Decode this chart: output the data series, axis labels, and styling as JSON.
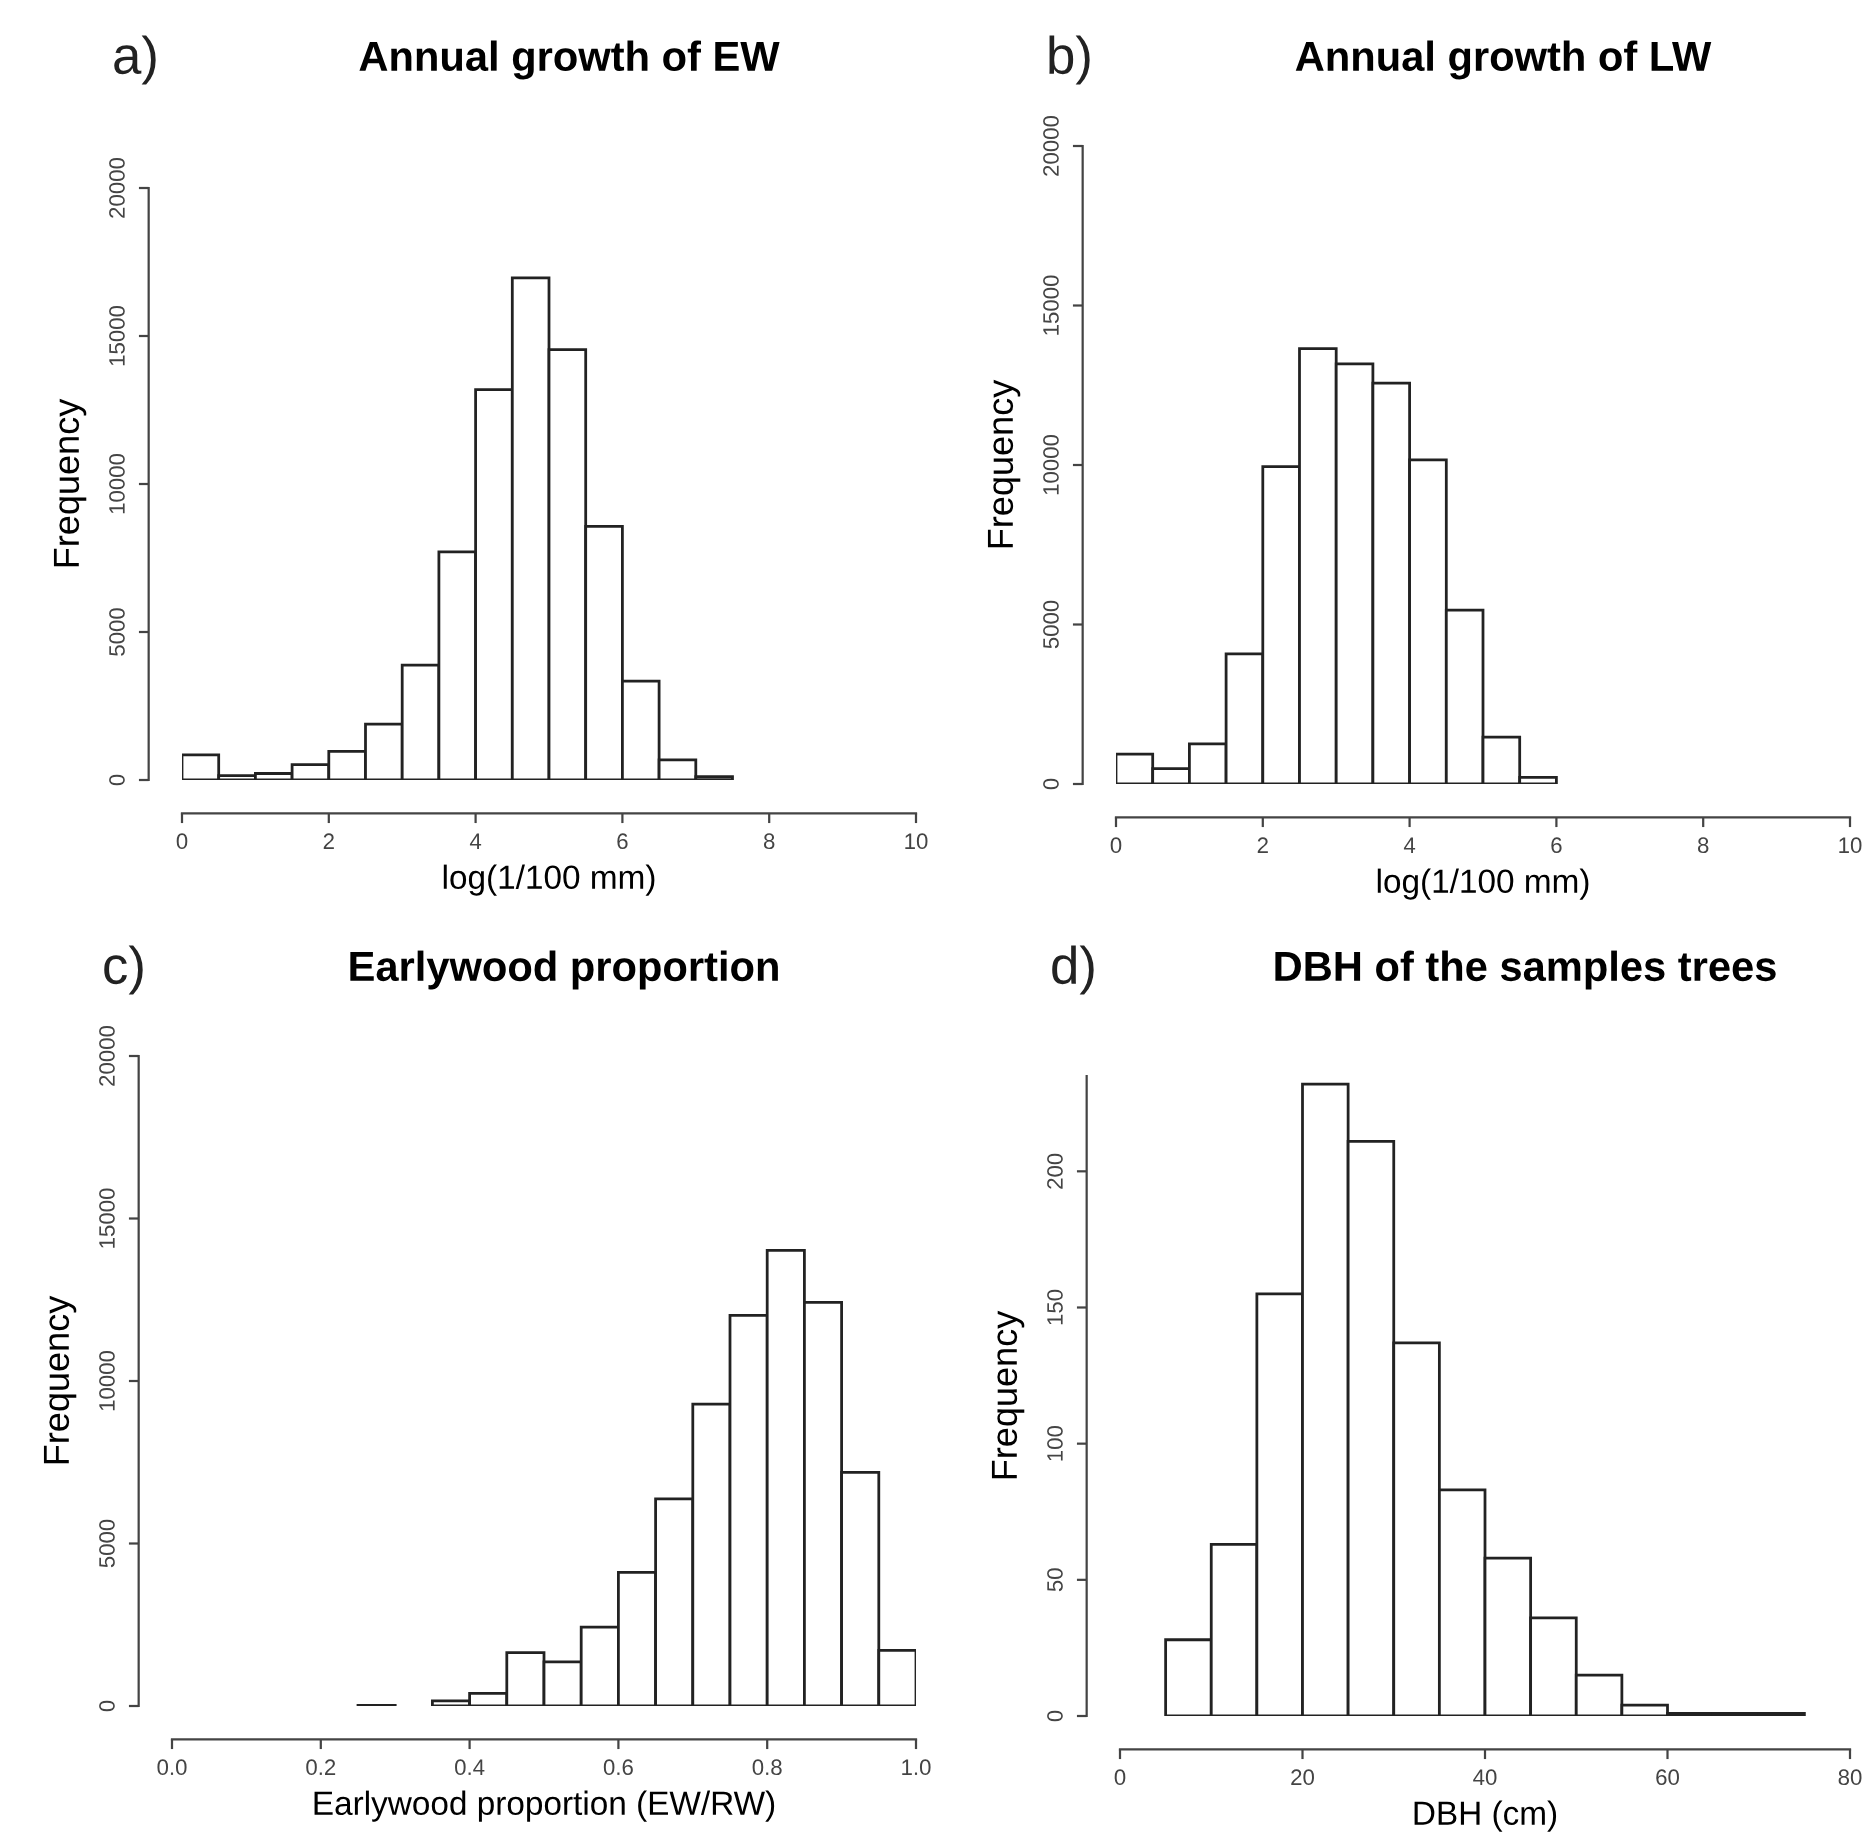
{
  "chart_data": [
    {
      "type": "histogram",
      "title": "Annual growth of EW",
      "annotations": [
        "a)"
      ],
      "xlabel": "log(1/100 mm)",
      "ylabel": "Frequency",
      "color": "#ffffff",
      "bins": [
        0,
        0.5,
        1,
        1.5,
        2,
        2.5,
        3,
        3.5,
        4,
        4.5,
        5,
        5.5,
        6,
        6.5,
        7,
        7.5,
        8,
        8.5
      ],
      "values": [
        850,
        150,
        220,
        520,
        970,
        1890,
        3880,
        7710,
        13190,
        16960,
        14540,
        8570,
        3340,
        680,
        110,
        null,
        null
      ],
      "xlim": [
        0,
        10
      ],
      "xticks": [
        0,
        2,
        4,
        6,
        8,
        10
      ],
      "ylim": [
        0,
        20000
      ],
      "yticks": [
        0,
        5000,
        10000,
        15000,
        20000
      ],
      "grid": false
    },
    {
      "type": "histogram",
      "title": "Annual growth of LW",
      "annotations": [
        "b)"
      ],
      "xlabel": "log(1/100 mm)",
      "ylabel": "Frequency",
      "color": "#ffffff",
      "bins": [
        0,
        0.5,
        1,
        1.5,
        2,
        2.5,
        3,
        3.5,
        4,
        4.5,
        5,
        5.5,
        6,
        6.5
      ],
      "values": [
        940,
        480,
        1260,
        4080,
        9950,
        13650,
        13170,
        12570,
        10160,
        5450,
        1470,
        210,
        null
      ],
      "xlim": [
        0,
        10
      ],
      "xticks": [
        0,
        2,
        4,
        6,
        8,
        10
      ],
      "ylim": [
        0,
        20000
      ],
      "yticks": [
        0,
        5000,
        10000,
        15000,
        20000
      ],
      "grid": false
    },
    {
      "type": "histogram",
      "title": "Earlywood proportion",
      "annotations": [
        "c)"
      ],
      "xlabel": "Earlywood proportion (EW/RW)",
      "ylabel": "Frequency",
      "color": "#ffffff",
      "bins": [
        0,
        0.05,
        0.1,
        0.15,
        0.2,
        0.25,
        0.3,
        0.35,
        0.4,
        0.45,
        0.5,
        0.55,
        0.6,
        0.65,
        0.7,
        0.75,
        0.8,
        0.85,
        0.9,
        0.95,
        1.0
      ],
      "values": [
        0,
        0,
        0,
        0,
        0,
        20,
        null,
        160,
        390,
        1640,
        1360,
        2430,
        4110,
        6370,
        9290,
        12020,
        14020,
        12420,
        7190,
        1710
      ],
      "xlim": [
        0,
        1
      ],
      "xticks": [
        {
          "value": 0,
          "label": "0.0"
        },
        0.2,
        0.4,
        0.6,
        0.8,
        {
          "value": 1,
          "label": "1.0"
        }
      ],
      "ylim": [
        0,
        20000
      ],
      "yticks": [
        0,
        5000,
        10000,
        15000,
        20000
      ],
      "grid": false
    },
    {
      "type": "histogram",
      "title": "DBH of the samples trees",
      "annotations": [
        "d)"
      ],
      "xlabel": "DBH (cm)",
      "ylabel": "Frequency",
      "color": "#ffffff",
      "bins": [
        5,
        10,
        15,
        20,
        25,
        30,
        35,
        40,
        45,
        50,
        55,
        60,
        65,
        70,
        75
      ],
      "values": [
        28,
        63,
        155,
        232,
        211,
        137,
        83,
        58,
        36,
        15,
        4,
        1,
        1,
        1
      ],
      "xlim": [
        0,
        80
      ],
      "xticks": [
        0,
        20,
        40,
        60,
        80
      ],
      "ylim": [
        0,
        235
      ],
      "yticks": [
        0,
        50,
        100,
        150,
        200
      ],
      "grid": false
    }
  ]
}
